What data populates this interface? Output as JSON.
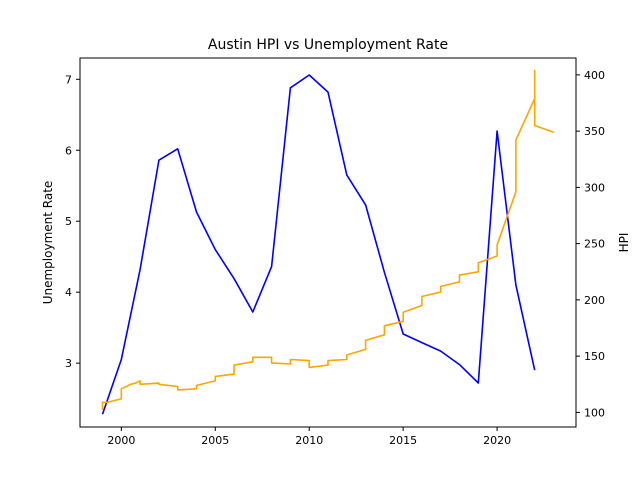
{
  "chart_data": {
    "type": "line",
    "title": "Austin HPI vs Unemployment Rate",
    "xlabel": "",
    "ylabel_left": "Unemployment Rate",
    "ylabel_right": "HPI",
    "xlim": [
      1997.8,
      2024.2
    ],
    "ylim_left": [
      2.1,
      7.3
    ],
    "ylim_right": [
      87,
      415
    ],
    "x_ticks": [
      2000,
      2005,
      2010,
      2015,
      2020
    ],
    "x_tick_labels": [
      "2000",
      "2005",
      "2010",
      "2015",
      "2020"
    ],
    "y_left_ticks": [
      3,
      4,
      5,
      6,
      7
    ],
    "y_left_tick_labels": [
      "3",
      "4",
      "5",
      "6",
      "7"
    ],
    "y_right_ticks": [
      100,
      150,
      200,
      250,
      300,
      350,
      400
    ],
    "y_right_tick_labels": [
      "100",
      "150",
      "200",
      "250",
      "300",
      "350",
      "400"
    ],
    "grid": false,
    "series": [
      {
        "axis": "left",
        "color": "#0000ff",
        "x": [
          1999,
          2000,
          2001,
          2002,
          2003,
          2004,
          2005,
          2006,
          2007,
          2008,
          2009,
          2010,
          2011,
          2012,
          2013,
          2014,
          2015,
          2016,
          2017,
          2018,
          2019,
          2020,
          2021,
          2022
        ],
        "y": [
          2.28,
          3.05,
          4.32,
          5.86,
          6.02,
          5.13,
          4.6,
          4.19,
          3.72,
          4.36,
          6.88,
          7.06,
          6.82,
          5.65,
          5.23,
          4.28,
          3.41,
          3.29,
          3.17,
          2.98,
          2.72,
          6.27,
          4.1,
          2.9
        ]
      },
      {
        "axis": "right",
        "color": "#ffa500",
        "x": [
          1999,
          1999,
          1999.25,
          1999.5,
          1999.75,
          2000,
          2000,
          2000.5,
          2000.75,
          2001,
          2001,
          2002,
          2002,
          2003,
          2003,
          2004,
          2004,
          2005,
          2005,
          2006,
          2006,
          2007,
          2007,
          2008,
          2008,
          2009,
          2009,
          2010,
          2010,
          2011,
          2011,
          2012,
          2012,
          2013,
          2013,
          2014,
          2014,
          2015,
          2015,
          2016,
          2016,
          2017,
          2017,
          2018,
          2018,
          2019,
          2019,
          2020,
          2020,
          2021,
          2021,
          2022,
          2022,
          2022,
          2023
        ],
        "y": [
          102,
          109,
          109,
          110,
          111,
          112,
          121,
          125,
          126,
          128,
          125,
          126,
          125,
          123,
          120,
          121,
          124,
          128,
          132,
          134,
          142,
          145,
          149,
          149,
          144,
          143,
          147,
          146,
          140,
          142,
          146,
          147,
          151,
          156,
          164,
          169,
          177,
          181,
          189,
          195,
          203,
          207,
          212,
          216,
          222,
          225,
          233,
          239,
          249,
          296,
          342,
          379,
          404,
          355,
          349
        ]
      }
    ]
  }
}
